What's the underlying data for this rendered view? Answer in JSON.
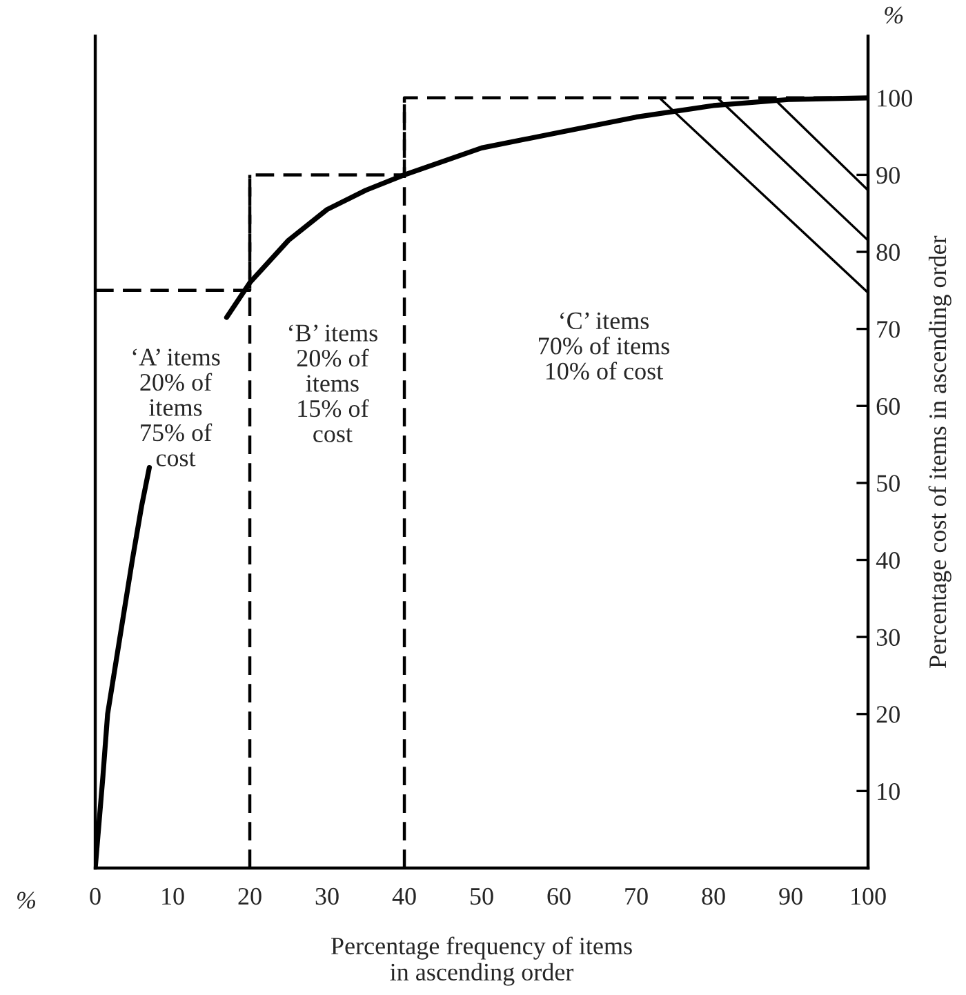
{
  "chart_data": {
    "type": "line",
    "xlabel": "Percentage frequency of items\nin ascending order",
    "ylabel": "Percentage cost of items in ascending order",
    "xlim": [
      0,
      100
    ],
    "ylim": [
      0,
      108
    ],
    "xticks": [
      0,
      10,
      20,
      30,
      40,
      50,
      60,
      70,
      80,
      90,
      100
    ],
    "yticks": [
      10,
      20,
      30,
      40,
      50,
      60,
      70,
      80,
      90,
      100
    ],
    "series": [
      {
        "color": "#000000",
        "line_style": "solid",
        "x": [
          0,
          1,
          1.6,
          3.2,
          4.8,
          6,
          7,
          12,
          17,
          20,
          25,
          30,
          35,
          40,
          50,
          60,
          70,
          80,
          90,
          100
        ],
        "values": [
          0,
          12,
          20,
          30,
          40,
          47,
          52,
          null,
          71.5,
          76,
          81.5,
          85.5,
          88,
          90,
          93.5,
          95.5,
          97.5,
          99,
          99.8,
          100
        ]
      },
      {
        "color": "#000000",
        "line_style": "dashed",
        "x": [
          0,
          20,
          20,
          40,
          40,
          100
        ],
        "values": [
          75,
          75,
          90,
          90,
          100,
          100
        ]
      }
    ],
    "ref_lines": [
      {
        "axis": "x",
        "value": 20,
        "color": "#000000",
        "line_style": "dashed"
      },
      {
        "axis": "x",
        "value": 40,
        "color": "#000000",
        "line_style": "dashed"
      }
    ],
    "annotations": [
      "%",
      "%",
      "‘A’ items\n20% of\nitems\n75% of\ncost",
      "‘B’ items\n20% of\nitems\n15% of\ncost",
      "‘C’ items\n70% of items\n10% of cost"
    ]
  }
}
